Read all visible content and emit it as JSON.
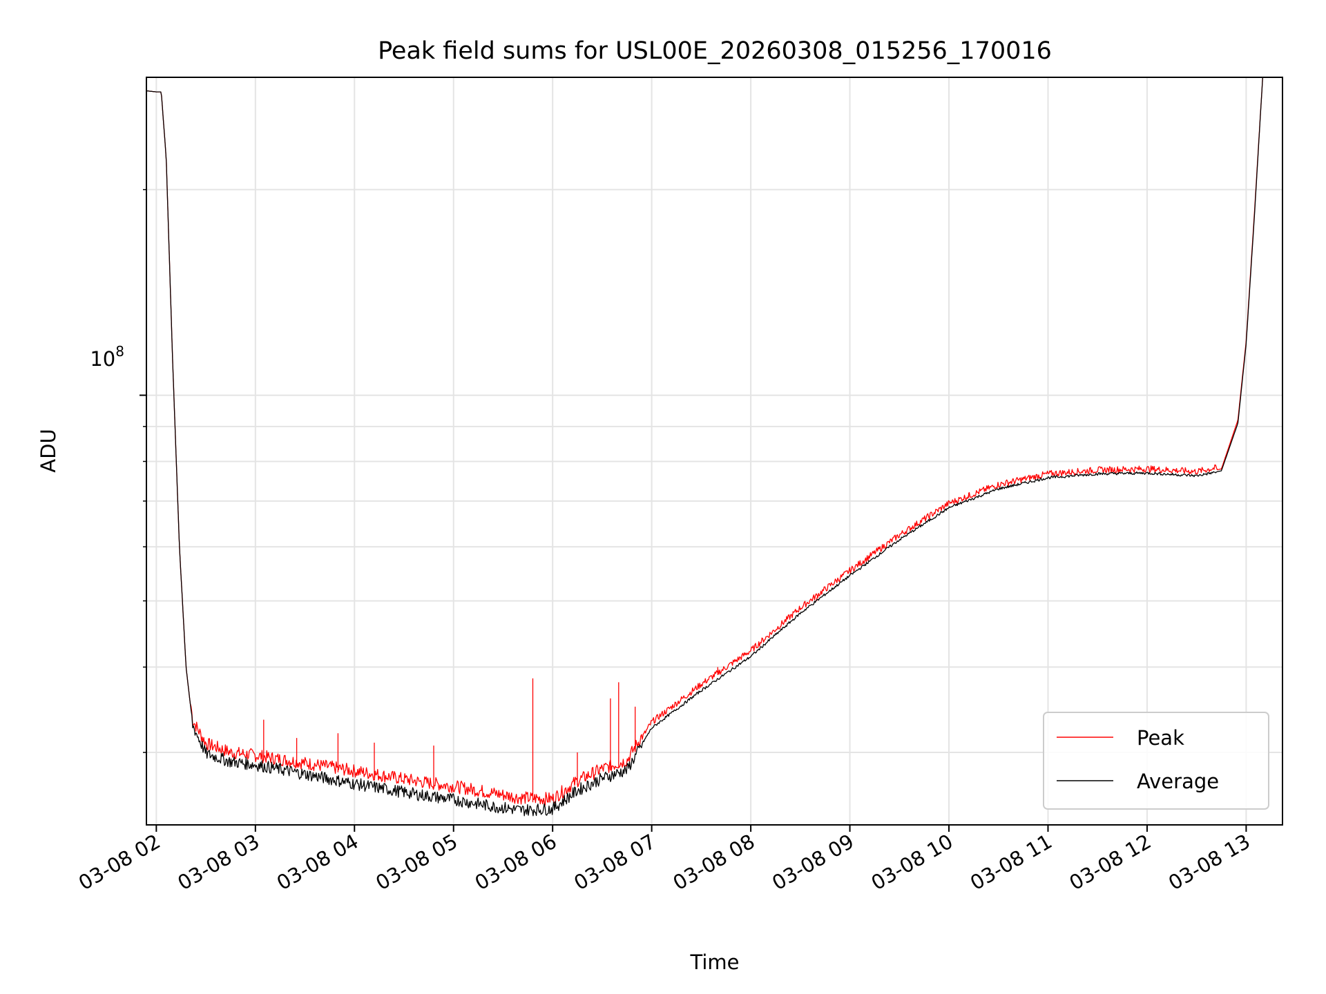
{
  "chart_data": {
    "type": "line",
    "title": "Peak field sums for USL00E_20260308_015256_170016",
    "xlabel": "Time",
    "ylabel": "ADU",
    "yscale": "log",
    "grid": true,
    "legend_position": "lower-right",
    "x_unit": "hours",
    "xlim": [
      "03-08 01:54",
      "03-08 13:22"
    ],
    "ylim": [
      23500000,
      292000000
    ],
    "x_ticks": [
      "03-08 02",
      "03-08 03",
      "03-08 04",
      "03-08 05",
      "03-08 06",
      "03-08 07",
      "03-08 08",
      "03-08 09",
      "03-08 10",
      "03-08 11",
      "03-08 12",
      "03-08 13"
    ],
    "y_tick_base": "10",
    "y_tick_exponent": "8",
    "y_major_tick_values": [
      100000000
    ],
    "y_minor_tick_values": [
      30000000,
      40000000,
      50000000,
      60000000,
      70000000,
      80000000,
      90000000,
      200000000
    ],
    "series": [
      {
        "name": "Peak",
        "color": "#ff0000",
        "x": [
          "03-08 01:54",
          "03-08 02:00",
          "03-08 02:03",
          "03-08 02:06",
          "03-08 02:10",
          "03-08 02:14",
          "03-08 02:18",
          "03-08 02:22",
          "03-08 02:30",
          "03-08 02:45",
          "03-08 03:00",
          "03-08 03:20",
          "03-08 03:40",
          "03-08 04:00",
          "03-08 04:20",
          "03-08 04:40",
          "03-08 05:00",
          "03-08 05:20",
          "03-08 05:40",
          "03-08 06:00",
          "03-08 06:15",
          "03-08 06:30",
          "03-08 06:45",
          "03-08 07:00",
          "03-08 07:30",
          "03-08 08:00",
          "03-08 08:30",
          "03-08 09:00",
          "03-08 09:30",
          "03-08 10:00",
          "03-08 10:30",
          "03-08 11:00",
          "03-08 11:30",
          "03-08 12:00",
          "03-08 12:30",
          "03-08 12:45",
          "03-08 12:55",
          "03-08 13:00",
          "03-08 13:05",
          "03-08 13:10"
        ],
        "y": [
          279000000,
          278000000,
          278000000,
          222000000,
          110000000,
          60000000,
          40000000,
          33000000,
          30500000,
          29600000,
          29300000,
          28800000,
          28300000,
          27800000,
          27300000,
          26800000,
          26400000,
          25900000,
          25400000,
          25300000,
          26900000,
          28000000,
          28800000,
          33000000,
          37500000,
          42000000,
          48500000,
          55000000,
          62000000,
          69000000,
          73500000,
          76200000,
          77200000,
          77500000,
          76800000,
          78000000,
          92000000,
          120000000,
          185000000,
          292000000
        ],
        "spikes": [
          {
            "x": "03-08 03:05",
            "y": 33500000
          },
          {
            "x": "03-08 03:25",
            "y": 31500000
          },
          {
            "x": "03-08 03:50",
            "y": 32000000
          },
          {
            "x": "03-08 04:12",
            "y": 31000000
          },
          {
            "x": "03-08 04:48",
            "y": 30700000
          },
          {
            "x": "03-08 05:48",
            "y": 38500000
          },
          {
            "x": "03-08 06:15",
            "y": 30000000
          },
          {
            "x": "03-08 06:35",
            "y": 36000000
          },
          {
            "x": "03-08 06:40",
            "y": 38000000
          },
          {
            "x": "03-08 06:50",
            "y": 35000000
          },
          {
            "x": "03-08 07:40",
            "y": 40000000
          },
          {
            "x": "03-08 08:40",
            "y": 50000000
          },
          {
            "x": "03-08 10:12",
            "y": 72000000
          }
        ]
      },
      {
        "name": "Average",
        "color": "#000000",
        "x": [
          "03-08 01:54",
          "03-08 02:00",
          "03-08 02:03",
          "03-08 02:06",
          "03-08 02:10",
          "03-08 02:14",
          "03-08 02:18",
          "03-08 02:22",
          "03-08 02:30",
          "03-08 02:45",
          "03-08 03:00",
          "03-08 03:20",
          "03-08 03:40",
          "03-08 04:00",
          "03-08 04:20",
          "03-08 04:40",
          "03-08 05:00",
          "03-08 05:20",
          "03-08 05:40",
          "03-08 06:00",
          "03-08 06:15",
          "03-08 06:30",
          "03-08 06:45",
          "03-08 07:00",
          "03-08 07:30",
          "03-08 08:00",
          "03-08 08:30",
          "03-08 09:00",
          "03-08 09:30",
          "03-08 10:00",
          "03-08 10:30",
          "03-08 11:00",
          "03-08 11:30",
          "03-08 12:00",
          "03-08 12:30",
          "03-08 12:45",
          "03-08 12:55",
          "03-08 13:00",
          "03-08 13:05",
          "03-08 13:10"
        ],
        "y": [
          279000000,
          278000000,
          278000000,
          222000000,
          110000000,
          60000000,
          40000000,
          33000000,
          30000000,
          29200000,
          28900000,
          28300000,
          27700000,
          27100000,
          26600000,
          26100000,
          25700000,
          25200000,
          24800000,
          24900000,
          26500000,
          27600000,
          28400000,
          32600000,
          37000000,
          41500000,
          48000000,
          54500000,
          61500000,
          68500000,
          73000000,
          75800000,
          76800000,
          77000000,
          76300000,
          77500000,
          91000000,
          119000000,
          183000000,
          292000000
        ]
      }
    ]
  }
}
